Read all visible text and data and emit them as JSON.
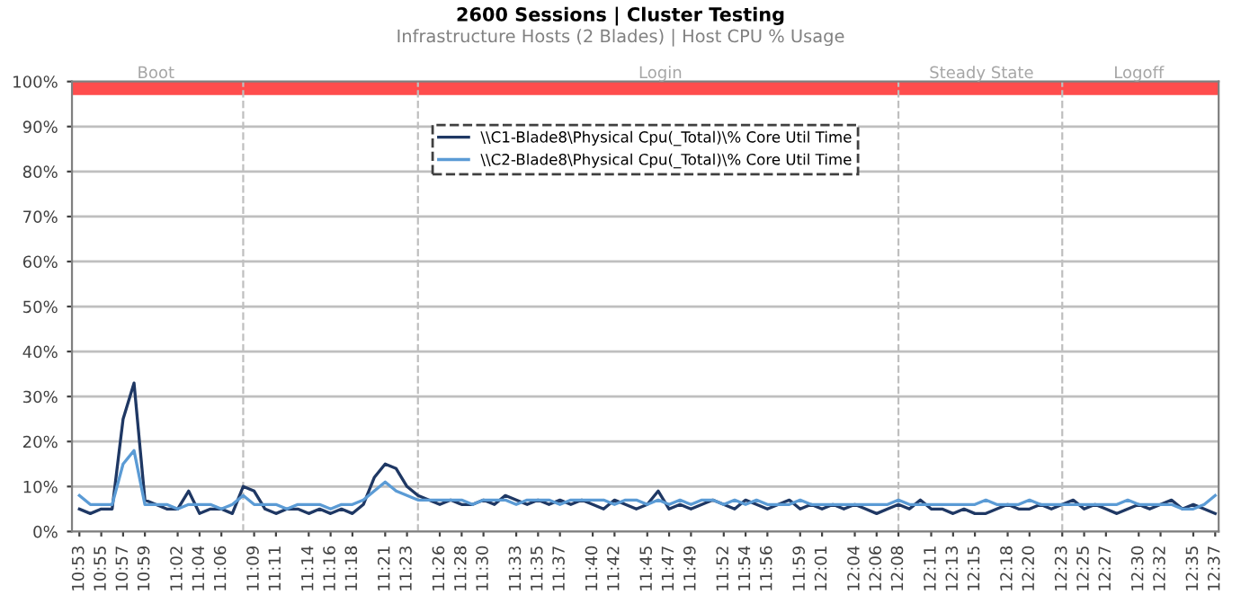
{
  "chart_data": {
    "type": "line",
    "title": "2600 Sessions | Cluster Testing",
    "subtitle": "Infrastructure Hosts (2 Blades) | Host CPU % Usage",
    "x": [
      10.8833,
      10.9,
      10.9167,
      10.9333,
      10.95,
      10.9667,
      10.9833,
      11.0,
      11.0167,
      11.0333,
      11.05,
      11.0667,
      11.0833,
      11.1,
      11.1167,
      11.1333,
      11.15,
      11.1667,
      11.1833,
      11.2,
      11.2167,
      11.2333,
      11.25,
      11.2667,
      11.2833,
      11.3,
      11.3167,
      11.3333,
      11.35,
      11.3667,
      11.3833,
      11.4,
      11.4167,
      11.4333,
      11.45,
      11.4667,
      11.4833,
      11.5,
      11.5167,
      11.5333,
      11.55,
      11.5667,
      11.5833,
      11.6,
      11.6167,
      11.6333,
      11.65,
      11.6667,
      11.6833,
      11.7,
      11.7167,
      11.7333,
      11.75,
      11.7667,
      11.7833,
      11.8,
      11.8167,
      11.8333,
      11.85,
      11.8667,
      11.8833,
      11.9,
      11.9167,
      11.9333,
      11.95,
      11.9667,
      11.9833,
      12.0,
      12.0167,
      12.0333,
      12.05,
      12.0667,
      12.0833,
      12.1,
      12.1167,
      12.1333,
      12.15,
      12.1667,
      12.1833,
      12.2,
      12.2167,
      12.2333,
      12.25,
      12.2667,
      12.2833,
      12.3,
      12.3167,
      12.3333,
      12.35,
      12.3667,
      12.3833,
      12.4,
      12.4167,
      12.4333,
      12.45,
      12.4667,
      12.4833,
      12.5,
      12.5167,
      12.5333,
      12.55,
      12.5667,
      12.5833,
      12.6,
      12.6167
    ],
    "series": [
      {
        "name": "\\\\C1-Blade8\\Physical Cpu(_Total)\\% Core Util Time",
        "color": "#1f3864",
        "values": [
          5,
          4,
          5,
          5,
          25,
          33,
          7,
          6,
          5,
          5,
          9,
          4,
          5,
          5,
          4,
          10,
          9,
          5,
          4,
          5,
          5,
          4,
          5,
          4,
          5,
          4,
          6,
          12,
          15,
          14,
          10,
          8,
          7,
          6,
          7,
          6,
          6,
          7,
          6,
          8,
          7,
          6,
          7,
          6,
          7,
          6,
          7,
          6,
          5,
          7,
          6,
          5,
          6,
          9,
          5,
          6,
          5,
          6,
          7,
          6,
          5,
          7,
          6,
          5,
          6,
          7,
          5,
          6,
          5,
          6,
          5,
          6,
          5,
          4,
          5,
          6,
          5,
          7,
          5,
          5,
          4,
          5,
          4,
          4,
          5,
          6,
          5,
          5,
          6,
          5,
          6,
          7,
          5,
          6,
          5,
          4,
          5,
          6,
          5,
          6,
          7,
          5,
          6,
          5,
          4
        ]
      },
      {
        "name": "\\\\C2-Blade8\\Physical Cpu(_Total)\\% Core Util Time",
        "color": "#5b9bd5",
        "values": [
          8,
          6,
          6,
          6,
          15,
          18,
          6,
          6,
          6,
          5,
          6,
          6,
          6,
          5,
          6,
          8,
          6,
          6,
          6,
          5,
          6,
          6,
          6,
          5,
          6,
          6,
          7,
          9,
          11,
          9,
          8,
          7,
          7,
          7,
          7,
          7,
          6,
          7,
          7,
          7,
          6,
          7,
          7,
          7,
          6,
          7,
          7,
          7,
          7,
          6,
          7,
          7,
          6,
          7,
          6,
          7,
          6,
          7,
          7,
          6,
          7,
          6,
          7,
          6,
          6,
          6,
          7,
          6,
          6,
          6,
          6,
          6,
          6,
          6,
          6,
          7,
          6,
          6,
          6,
          6,
          6,
          6,
          6,
          7,
          6,
          6,
          6,
          7,
          6,
          6,
          6,
          6,
          6,
          6,
          6,
          6,
          7,
          6,
          6,
          6,
          6,
          5,
          5,
          6,
          8
        ]
      }
    ],
    "xlim": [
      10.872,
      12.622
    ],
    "xticks": [
      {
        "value": 10.8833,
        "label": "10:53"
      },
      {
        "value": 10.9167,
        "label": "10:55"
      },
      {
        "value": 10.95,
        "label": "10:57"
      },
      {
        "value": 10.9833,
        "label": "10:59"
      },
      {
        "value": 11.0333,
        "label": "11:02"
      },
      {
        "value": 11.0667,
        "label": "11:04"
      },
      {
        "value": 11.1,
        "label": "11:06"
      },
      {
        "value": 11.15,
        "label": "11:09"
      },
      {
        "value": 11.1833,
        "label": "11:11"
      },
      {
        "value": 11.2333,
        "label": "11:14"
      },
      {
        "value": 11.2667,
        "label": "11:16"
      },
      {
        "value": 11.3,
        "label": "11:18"
      },
      {
        "value": 11.35,
        "label": "11:21"
      },
      {
        "value": 11.3833,
        "label": "11:23"
      },
      {
        "value": 11.4333,
        "label": "11:26"
      },
      {
        "value": 11.4667,
        "label": "11:28"
      },
      {
        "value": 11.5,
        "label": "11:30"
      },
      {
        "value": 11.55,
        "label": "11:33"
      },
      {
        "value": 11.5833,
        "label": "11:35"
      },
      {
        "value": 11.6167,
        "label": "11:37"
      },
      {
        "value": 11.6667,
        "label": "11:40"
      },
      {
        "value": 11.7,
        "label": "11:42"
      },
      {
        "value": 11.75,
        "label": "11:45"
      },
      {
        "value": 11.7833,
        "label": "11:47"
      },
      {
        "value": 11.8167,
        "label": "11:49"
      },
      {
        "value": 11.8667,
        "label": "11:52"
      },
      {
        "value": 11.9,
        "label": "11:54"
      },
      {
        "value": 11.9333,
        "label": "11:56"
      },
      {
        "value": 11.9833,
        "label": "11:59"
      },
      {
        "value": 12.0167,
        "label": "12:01"
      },
      {
        "value": 12.0667,
        "label": "12:04"
      },
      {
        "value": 12.1,
        "label": "12:06"
      },
      {
        "value": 12.1333,
        "label": "12:08"
      },
      {
        "value": 12.1833,
        "label": "12:11"
      },
      {
        "value": 12.2167,
        "label": "12:13"
      },
      {
        "value": 12.25,
        "label": "12:15"
      },
      {
        "value": 12.3,
        "label": "12:18"
      },
      {
        "value": 12.3333,
        "label": "12:20"
      },
      {
        "value": 12.3833,
        "label": "12:23"
      },
      {
        "value": 12.4167,
        "label": "12:25"
      },
      {
        "value": 12.45,
        "label": "12:27"
      },
      {
        "value": 12.5,
        "label": "12:30"
      },
      {
        "value": 12.5333,
        "label": "12:32"
      },
      {
        "value": 12.5833,
        "label": "12:35"
      },
      {
        "value": 12.6167,
        "label": "12:37"
      }
    ],
    "ylim": [
      0,
      100
    ],
    "yticks": [
      {
        "value": 0,
        "label": "0%"
      },
      {
        "value": 10,
        "label": "10%"
      },
      {
        "value": 20,
        "label": "20%"
      },
      {
        "value": 30,
        "label": "30%"
      },
      {
        "value": 40,
        "label": "40%"
      },
      {
        "value": 50,
        "label": "50%"
      },
      {
        "value": 60,
        "label": "60%"
      },
      {
        "value": 70,
        "label": "70%"
      },
      {
        "value": 80,
        "label": "80%"
      },
      {
        "value": 90,
        "label": "90%"
      },
      {
        "value": 100,
        "label": "100%"
      }
    ],
    "ref_lines": [
      {
        "axis": "x",
        "value": 11.1333,
        "color": "#bfbfbf",
        "line_style": "dashed"
      },
      {
        "axis": "x",
        "value": 11.4,
        "color": "#bfbfbf",
        "line_style": "dashed"
      },
      {
        "axis": "x",
        "value": 12.1333,
        "color": "#bfbfbf",
        "line_style": "dashed"
      },
      {
        "axis": "x",
        "value": 12.3833,
        "color": "#bfbfbf",
        "line_style": "dashed"
      }
    ],
    "bands": [
      {
        "axis": "y",
        "from": 97,
        "to": 100,
        "color": "#ff4d4d"
      }
    ],
    "annotations": [
      {
        "text": "Boot",
        "x": 11.0,
        "y": 100
      },
      {
        "text": "Login",
        "x": 11.77,
        "y": 100
      },
      {
        "text": "Steady State",
        "x": 12.26,
        "y": 100
      },
      {
        "text": "Logoff",
        "x": 12.5,
        "y": 100
      }
    ],
    "grid": "y",
    "legend": "top",
    "marker": "none",
    "line_style": "solid"
  }
}
